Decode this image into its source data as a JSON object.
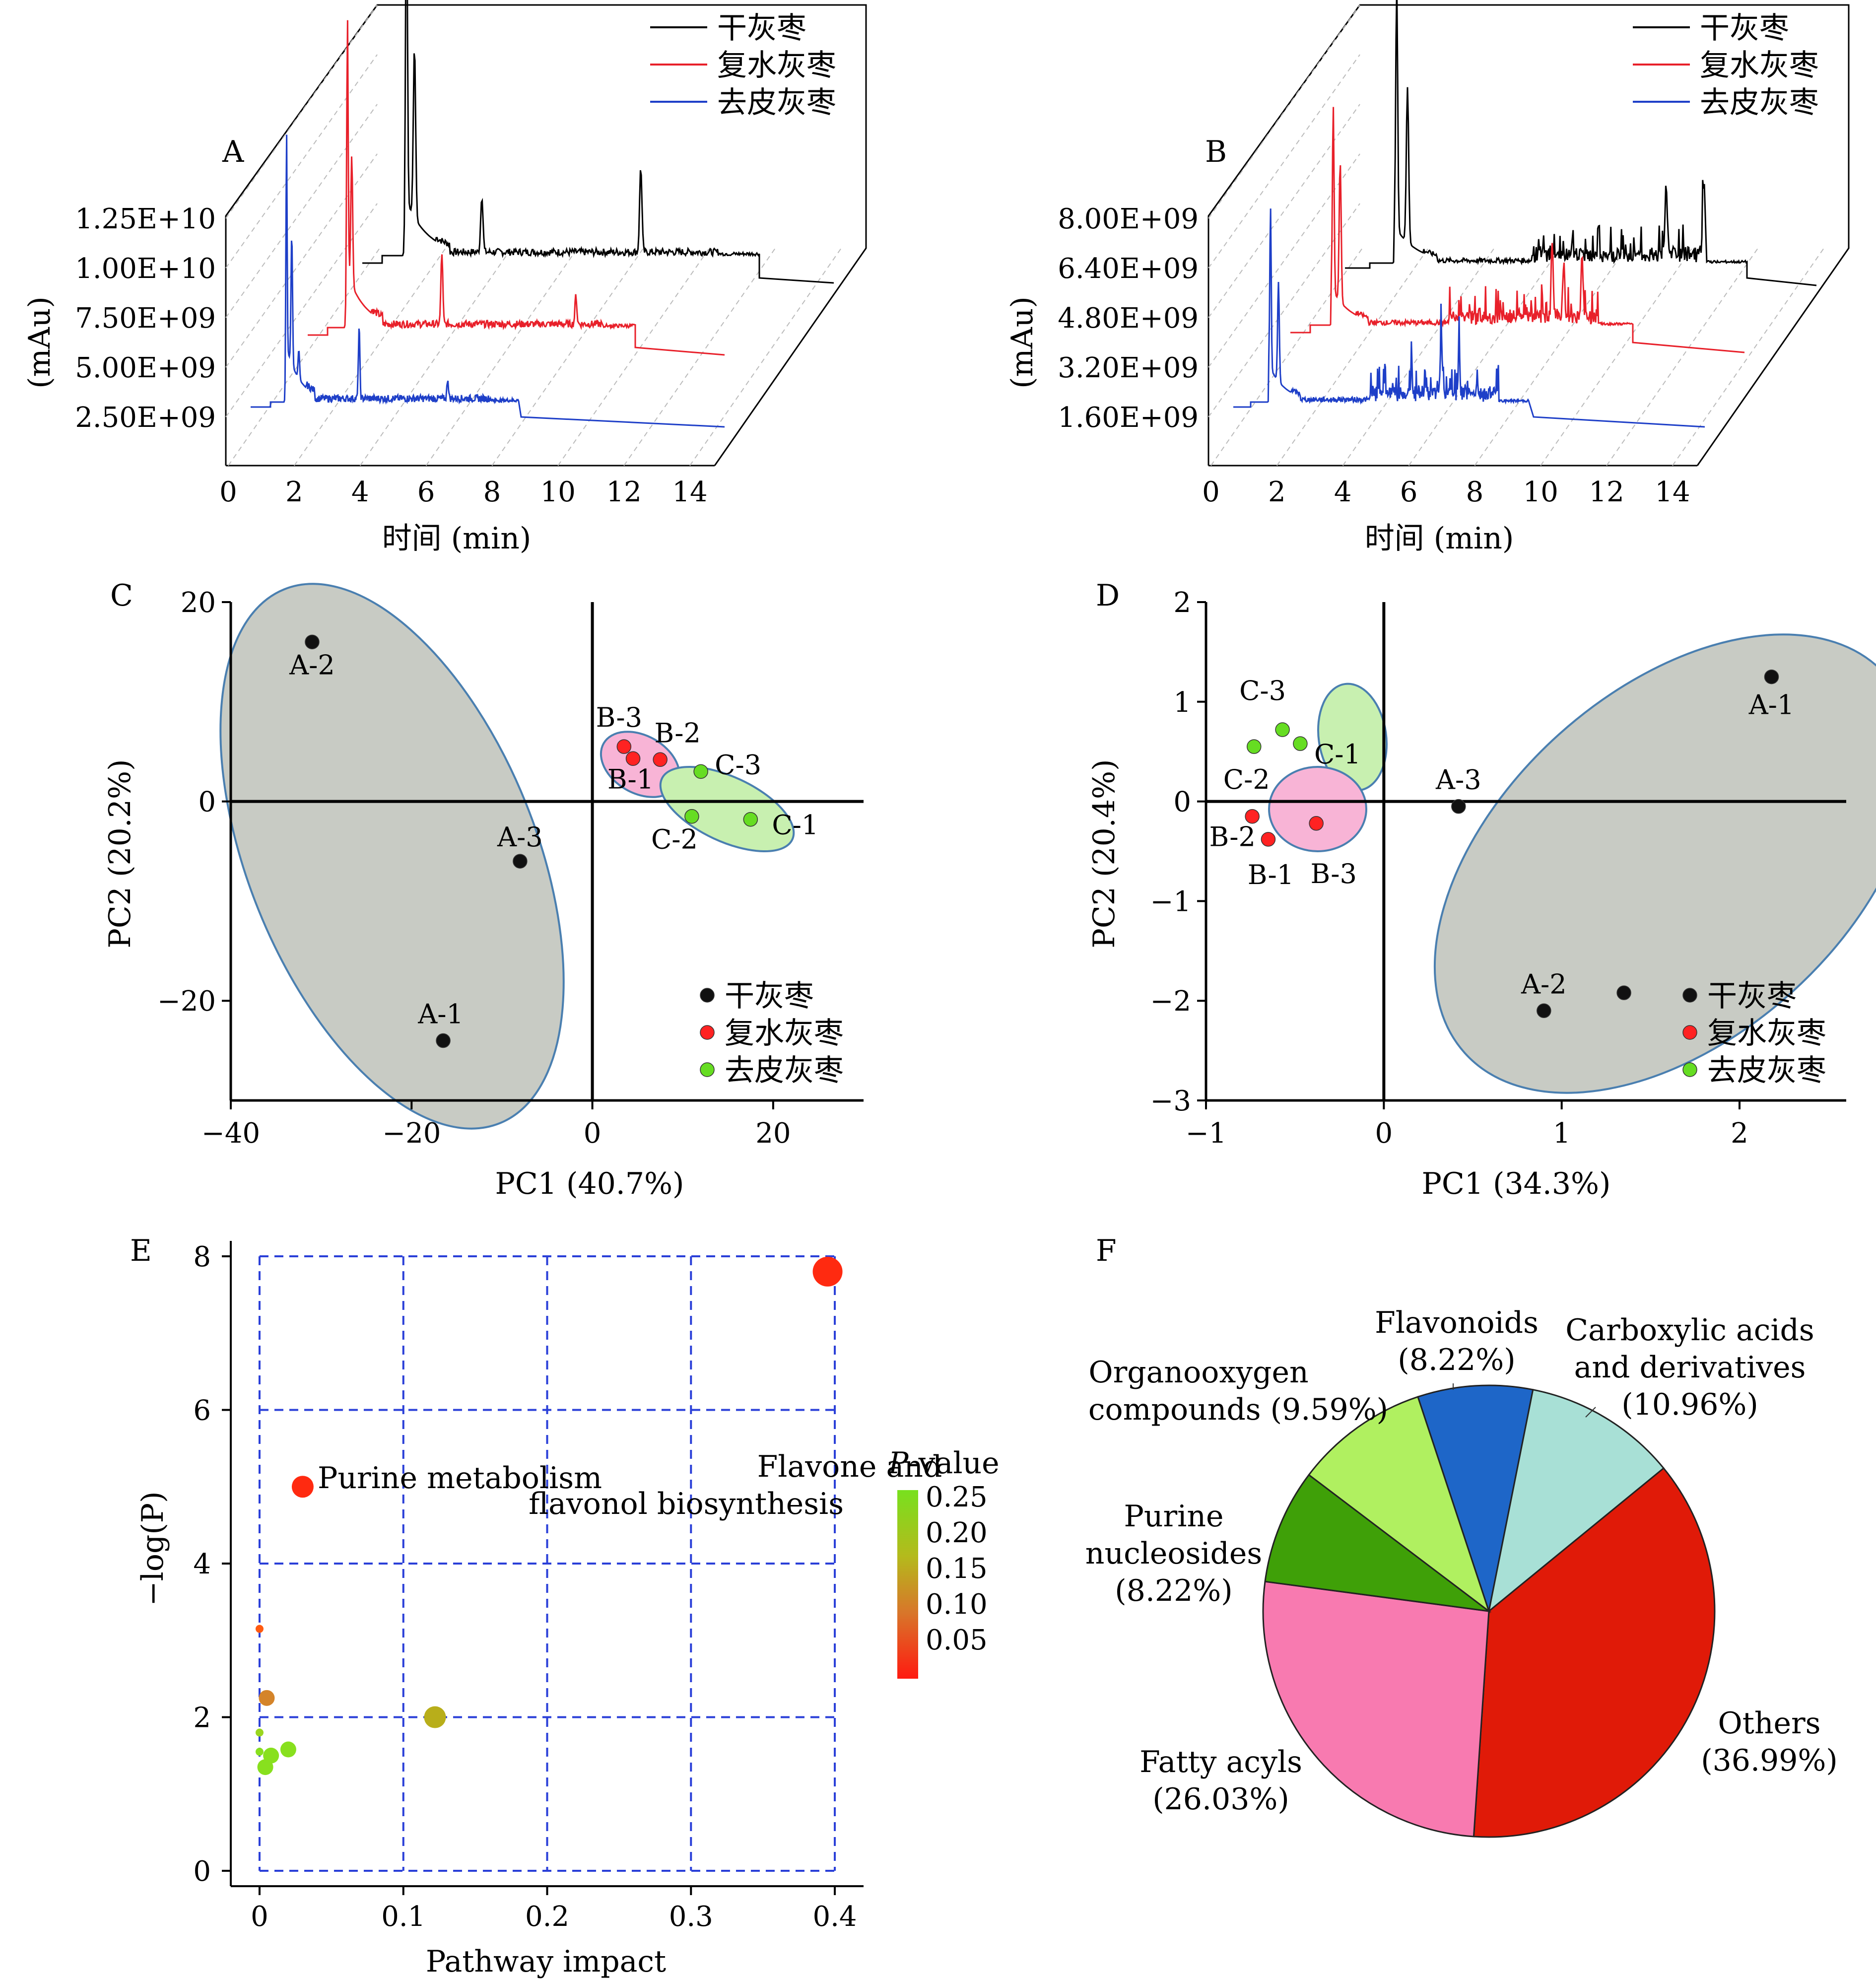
{
  "panels": {
    "A": {
      "label": "A",
      "ylabel": "(mAu)",
      "xlabel": "时间 (min)",
      "yticks": [
        "1.25E+10",
        "1.00E+10",
        "7.50E+09",
        "5.00E+09",
        "2.50E+09"
      ],
      "xticks": [
        "0",
        "2",
        "4",
        "6",
        "8",
        "10",
        "12",
        "14"
      ],
      "legend": [
        "干灰枣",
        "复水灰枣",
        "去皮灰枣"
      ]
    },
    "B": {
      "label": "B",
      "ylabel": "(mAu)",
      "xlabel": "时间 (min)",
      "yticks": [
        "8.00E+09",
        "6.40E+09",
        "4.80E+09",
        "3.20E+09",
        "1.60E+09"
      ],
      "xticks": [
        "0",
        "2",
        "4",
        "6",
        "8",
        "10",
        "12",
        "14"
      ],
      "legend": [
        "干灰枣",
        "复水灰枣",
        "去皮灰枣"
      ]
    },
    "C": {
      "label": "C",
      "xlabel": "PC1 (40.7%)",
      "ylabel": "PC2 (20.2%)",
      "xticks": [
        "−40",
        "−20",
        "0",
        "20"
      ],
      "yticks": [
        "20",
        "0",
        "−20"
      ],
      "legend": [
        "干灰枣",
        "复水灰枣",
        "去皮灰枣"
      ]
    },
    "D": {
      "label": "D",
      "xlabel": "PC1 (34.3%)",
      "ylabel": "PC2 (20.4%)",
      "xticks": [
        "−1",
        "0",
        "1",
        "2"
      ],
      "yticks": [
        "2",
        "1",
        "0",
        "−1",
        "−2",
        "−3"
      ],
      "legend": [
        "干灰枣",
        "复水灰枣",
        "去皮灰枣"
      ]
    },
    "E": {
      "label": "E",
      "xlabel": "Pathway impact",
      "ylabel": "−log(P)",
      "xticks": [
        "0",
        "0.1",
        "0.2",
        "0.3",
        "0.4"
      ],
      "yticks": [
        "8",
        "6",
        "4",
        "2",
        "0"
      ],
      "colorbar_title_italic": "P",
      "colorbar_title_rest": "-value",
      "colorbar_ticks": [
        "0.25",
        "0.20",
        "0.15",
        "0.10",
        "0.05"
      ],
      "annotations": [
        "Flavone and",
        "flavonol biosynthesis",
        "Purine metabolism"
      ]
    },
    "F": {
      "label": "F"
    }
  },
  "chart_data": [
    {
      "panel": "A",
      "type": "line",
      "title": "",
      "xlabel": "时间 (min)",
      "ylabel": "(mAu)",
      "xlim": [
        0,
        14
      ],
      "ylim": [
        0,
        12500000000
      ],
      "series": [
        {
          "name": "干灰枣",
          "color": "#000000",
          "peaks_min": [
            0.9,
            1.2,
            3.7,
            9.6
          ],
          "peaks_mAu": [
            12500000000,
            6000000000,
            2000000000,
            3000000000
          ]
        },
        {
          "name": "复水灰枣",
          "color": "#e8202a",
          "peaks_min": [
            0.9,
            1.1,
            5.2,
            11.3
          ],
          "peaks_mAu": [
            9500000000,
            4500000000,
            2500000000,
            1000000000
          ]
        },
        {
          "name": "去皮灰枣",
          "color": "#1e3fc8",
          "peaks_min": [
            0.9,
            1.2,
            1.6,
            5.0,
            10.0
          ],
          "peaks_mAu": [
            8000000000,
            4500000000,
            1000000000,
            2500000000,
            700000000
          ]
        }
      ]
    },
    {
      "panel": "B",
      "type": "line",
      "title": "",
      "xlabel": "时间 (min)",
      "ylabel": "(mAu)",
      "xlim": [
        0,
        14
      ],
      "ylim": [
        0,
        8000000000
      ],
      "series": [
        {
          "name": "干灰枣",
          "color": "#000000",
          "peaks_min": [
            1.0,
            1.4,
            11.0,
            12.4,
            13.3
          ],
          "peaks_mAu": [
            8000000000,
            5000000000,
            2200000000,
            2400000000,
            2000000000
          ]
        },
        {
          "name": "复水灰枣",
          "color": "#e8202a",
          "peaks_min": [
            1.0,
            1.3,
            10.5,
            11.0,
            11.8
          ],
          "peaks_mAu": [
            6000000000,
            4500000000,
            2500000000,
            1800000000,
            2000000000
          ]
        },
        {
          "name": "去皮灰枣",
          "color": "#1e3fc8",
          "peaks_min": [
            1.0,
            1.4,
            9.6,
            10.5,
            8.1
          ],
          "peaks_mAu": [
            5200000000,
            3200000000,
            2100000000,
            1600000000,
            900000000
          ]
        }
      ]
    },
    {
      "panel": "C",
      "type": "scatter",
      "title": "",
      "xlabel": "PC1 (40.7%)",
      "ylabel": "PC2 (20.2%)",
      "xlim": [
        -40,
        30
      ],
      "ylim": [
        -30,
        20
      ],
      "series": [
        {
          "name": "干灰枣",
          "color": "#111111",
          "labels": [
            "A-2",
            "A-3",
            "A-1"
          ],
          "x": [
            -31,
            -8,
            -16.5
          ],
          "y": [
            16,
            -6,
            -24
          ]
        },
        {
          "name": "复水灰枣",
          "color": "#ff2222",
          "labels": [
            "B-3",
            "B-1",
            "B-2"
          ],
          "x": [
            3.5,
            4.5,
            7.5
          ],
          "y": [
            5.5,
            4.3,
            4.2
          ]
        },
        {
          "name": "去皮灰枣",
          "color": "#66dd22",
          "labels": [
            "C-3",
            "C-2",
            "C-1"
          ],
          "x": [
            12,
            11,
            17.5
          ],
          "y": [
            3,
            -1.5,
            -1.8
          ]
        }
      ]
    },
    {
      "panel": "D",
      "type": "scatter",
      "title": "",
      "xlabel": "PC1 (34.3%)",
      "ylabel": "PC2 (20.4%)",
      "xlim": [
        -1,
        2.6
      ],
      "ylim": [
        -3,
        2
      ],
      "series": [
        {
          "name": "干灰枣",
          "color": "#111111",
          "labels": [
            "A-1",
            "A-3",
            "A-2",
            ""
          ],
          "x": [
            2.18,
            0.42,
            0.9,
            1.35
          ],
          "y": [
            1.25,
            -0.05,
            -2.1,
            -1.92
          ]
        },
        {
          "name": "复水灰枣",
          "color": "#ff2222",
          "labels": [
            "B-2",
            "B-1",
            "B-3"
          ],
          "x": [
            -0.74,
            -0.65,
            -0.38
          ],
          "y": [
            -0.15,
            -0.38,
            -0.22
          ]
        },
        {
          "name": "去皮灰枣",
          "color": "#66dd22",
          "labels": [
            "C-2",
            "C-3",
            "C-1"
          ],
          "x": [
            -0.73,
            -0.57,
            -0.47
          ],
          "y": [
            0.55,
            0.72,
            0.58
          ]
        }
      ]
    },
    {
      "panel": "E",
      "type": "scatter",
      "title": "",
      "xlabel": "Pathway impact",
      "ylabel": "−log(P)",
      "xlim": [
        -0.02,
        0.42
      ],
      "ylim": [
        -0.2,
        8.2
      ],
      "points": [
        {
          "label": "Flavone and flavonol biosynthesis",
          "x": 0.395,
          "y": 7.8,
          "p": 0.0,
          "color": "#ff2a10",
          "size": "large"
        },
        {
          "label": "Purine metabolism",
          "x": 0.03,
          "y": 5.0,
          "p": 0.0,
          "color": "#ff2a10",
          "size": "medium"
        },
        {
          "label": "",
          "x": 0.0,
          "y": 3.15,
          "p": 0.04,
          "color": "#ff5a10",
          "size": "tiny"
        },
        {
          "label": "",
          "x": 0.005,
          "y": 2.25,
          "p": 0.1,
          "color": "#d4842a",
          "size": "small"
        },
        {
          "label": "",
          "x": 0.122,
          "y": 2.0,
          "p": 0.14,
          "color": "#b8ae1a",
          "size": "medium"
        },
        {
          "label": "",
          "x": 0.0,
          "y": 1.8,
          "p": 0.18,
          "color": "#9ad61e",
          "size": "tiny"
        },
        {
          "label": "",
          "x": 0.02,
          "y": 1.58,
          "p": 0.2,
          "color": "#88e01e",
          "size": "small"
        },
        {
          "label": "",
          "x": 0.008,
          "y": 1.5,
          "p": 0.22,
          "color": "#88e01e",
          "size": "small"
        },
        {
          "label": "",
          "x": 0.004,
          "y": 1.35,
          "p": 0.24,
          "color": "#88e01e",
          "size": "small"
        },
        {
          "label": "",
          "x": 0.0,
          "y": 1.55,
          "p": 0.25,
          "color": "#88e01e",
          "size": "tiny"
        }
      ]
    },
    {
      "panel": "F",
      "type": "pie",
      "title": "",
      "slices": [
        {
          "label": "Flavonoids",
          "pct": "(8.22%)",
          "value": 8.22,
          "color": "#1e66c8"
        },
        {
          "label": "Carboxylic acids and derivatives",
          "pct": "(10.96%)",
          "value": 10.96,
          "color": "#a8e0d6"
        },
        {
          "label": "Others",
          "pct": "(36.99%)",
          "value": 36.99,
          "color": "#e01a08"
        },
        {
          "label": "Fatty acyls",
          "pct": "(26.03%)",
          "value": 26.03,
          "color": "#f87ab0"
        },
        {
          "label": "Purine nucleosides",
          "pct": "(8.22%)",
          "value": 8.22,
          "color": "#3fa008"
        },
        {
          "label": "Organooxygen compounds",
          "pct": "(9.59%)",
          "value": 9.59,
          "color": "#b0f060"
        }
      ]
    }
  ]
}
